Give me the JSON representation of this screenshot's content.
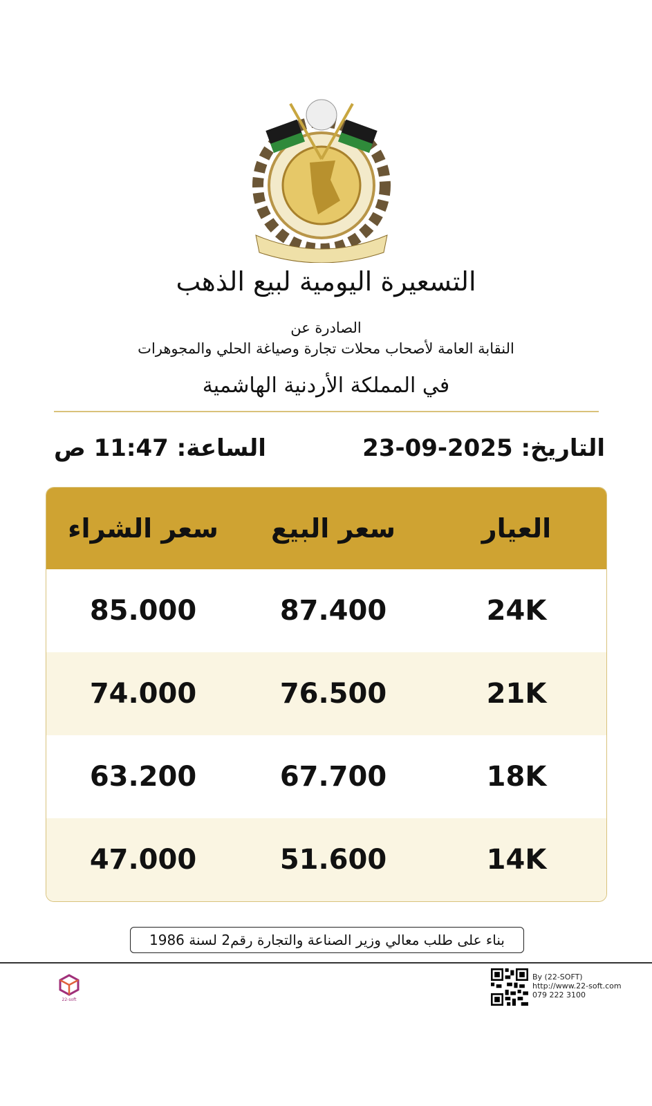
{
  "header": {
    "logo_alt": "شعار النقابة العامة لأصحاب محلات تجارة وصياغة الحلي والمجوهرات",
    "title": "التسعيرة اليومية لبيع الذهب",
    "issued_by": "الصادرة عن",
    "syndicate": "النقابة العامة لأصحاب محلات تجارة وصياغة الحلي والمجوهرات",
    "kingdom": "في المملكة الأردنية الهاشمية"
  },
  "meta": {
    "date_label": "التاريخ:",
    "date": "23-09-2025",
    "time_label": "الساعة:",
    "time": "11:47 ص"
  },
  "table": {
    "headers": [
      "العيار",
      "سعر البيع",
      "سعر الشراء"
    ],
    "rows": [
      [
        "24K",
        "87.400",
        "85.000"
      ],
      [
        "21K",
        "76.500",
        "74.000"
      ],
      [
        "18K",
        "67.700",
        "63.200"
      ],
      [
        "14K",
        "51.600",
        "47.000"
      ]
    ]
  },
  "note": "بناء على طلب معالي وزير الصناعة والتجارة رقم2 لسنة 1986",
  "footer": {
    "by": "By (22-SOFT)",
    "url": "http://www.22-soft.com",
    "phone": "079 222 3100",
    "brand_logo": "22-soft"
  },
  "colors": {
    "header_gold": "#cfa332",
    "stripe": "#faf5e2",
    "rule": "#d9c27a"
  }
}
